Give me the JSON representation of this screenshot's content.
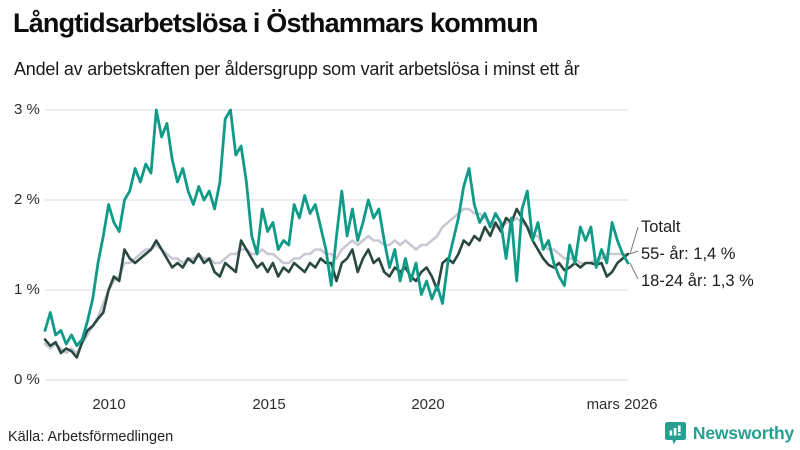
{
  "header": {
    "title": "Långtidsarbetslösa i Östhammars kommun",
    "subtitle": "Andel av arbetskraften per åldersgrupp som varit arbetslösa i minst ett år"
  },
  "footer": {
    "source": "Källa: Arbetsförmedlingen",
    "brand": "Newsworthy"
  },
  "colors": {
    "accent_teal": "#109b88",
    "dark_green": "#2a4840",
    "light_gray_line": "#c9c9d3",
    "gridline": "#e7e7ea",
    "leader_line": "#7a7a7a",
    "brand_teal": "#23a090"
  },
  "chart_data": {
    "type": "line",
    "title": "Långtidsarbetslösa i Östhammars kommun",
    "subtitle": "Andel av arbetskraften per åldersgrupp som varit arbetslösa i minst ett år",
    "x_axis": {
      "start": 2008.0,
      "end": 2026.25,
      "tick_labels": [
        "2010",
        "2015",
        "2020",
        "mars 2026"
      ],
      "tick_values": [
        2010,
        2015,
        2020,
        2026.17
      ]
    },
    "y_axis": {
      "lim": [
        0,
        3
      ],
      "tick_labels": [
        "3 %",
        "2 %",
        "1 %",
        "0 %"
      ],
      "tick_values": [
        3,
        2,
        1,
        0
      ],
      "grid": true
    },
    "legend_position": "end-of-line labels, right side",
    "end_labels": [
      {
        "text": "Totalt",
        "series": "Totalt"
      },
      {
        "text": "55- år: 1,4 %",
        "series": "55- år"
      },
      {
        "text": "18-24 år: 1,3 %",
        "series": "18-24 år"
      }
    ],
    "series": [
      {
        "name": "Totalt",
        "color": "#c9c9d3",
        "stroke_width": 2.6,
        "end_value": 1.4,
        "values": [
          0.4,
          0.35,
          0.4,
          0.35,
          0.3,
          0.35,
          0.3,
          0.4,
          0.5,
          0.6,
          0.7,
          0.85,
          1.0,
          1.1,
          1.15,
          1.3,
          1.3,
          1.35,
          1.4,
          1.45,
          1.45,
          1.5,
          1.45,
          1.4,
          1.35,
          1.35,
          1.3,
          1.35,
          1.35,
          1.4,
          1.35,
          1.35,
          1.3,
          1.3,
          1.35,
          1.4,
          1.4,
          1.45,
          1.45,
          1.4,
          1.4,
          1.45,
          1.4,
          1.4,
          1.35,
          1.3,
          1.3,
          1.35,
          1.35,
          1.4,
          1.4,
          1.45,
          1.45,
          1.4,
          1.4,
          1.35,
          1.45,
          1.5,
          1.55,
          1.5,
          1.55,
          1.6,
          1.55,
          1.55,
          1.5,
          1.5,
          1.55,
          1.5,
          1.55,
          1.5,
          1.45,
          1.5,
          1.5,
          1.55,
          1.6,
          1.7,
          1.75,
          1.8,
          1.85,
          1.9,
          1.9,
          1.85,
          1.85,
          1.8,
          1.75,
          1.7,
          1.7,
          1.75,
          1.75,
          1.8,
          1.75,
          1.7,
          1.6,
          1.6,
          1.5,
          1.45,
          1.45,
          1.4,
          1.35,
          1.35,
          1.35,
          1.3,
          1.3,
          1.3,
          1.35,
          1.35,
          1.4,
          1.4,
          1.4,
          1.4,
          1.4
        ]
      },
      {
        "name": "55- år",
        "color": "#2a4840",
        "stroke_width": 2.6,
        "end_value": 1.4,
        "values": [
          0.45,
          0.38,
          0.42,
          0.3,
          0.35,
          0.32,
          0.25,
          0.42,
          0.55,
          0.6,
          0.68,
          0.75,
          1.0,
          1.15,
          1.1,
          1.45,
          1.35,
          1.3,
          1.35,
          1.4,
          1.45,
          1.55,
          1.45,
          1.35,
          1.25,
          1.3,
          1.25,
          1.35,
          1.3,
          1.4,
          1.3,
          1.35,
          1.2,
          1.15,
          1.3,
          1.25,
          1.2,
          1.55,
          1.45,
          1.35,
          1.25,
          1.3,
          1.2,
          1.3,
          1.15,
          1.25,
          1.2,
          1.3,
          1.25,
          1.2,
          1.3,
          1.25,
          1.35,
          1.3,
          1.3,
          1.1,
          1.3,
          1.35,
          1.45,
          1.2,
          1.35,
          1.45,
          1.3,
          1.35,
          1.2,
          1.15,
          1.25,
          1.2,
          1.25,
          1.15,
          1.1,
          1.2,
          1.25,
          1.15,
          1.0,
          1.3,
          1.35,
          1.3,
          1.4,
          1.55,
          1.5,
          1.6,
          1.55,
          1.7,
          1.6,
          1.75,
          1.65,
          1.8,
          1.75,
          1.9,
          1.8,
          1.7,
          1.55,
          1.45,
          1.35,
          1.28,
          1.25,
          1.3,
          1.22,
          1.25,
          1.3,
          1.25,
          1.3,
          1.3,
          1.28,
          1.3,
          1.15,
          1.2,
          1.3,
          1.35,
          1.4
        ]
      },
      {
        "name": "18-24 år",
        "color": "#109b88",
        "stroke_width": 2.8,
        "end_value": 1.3,
        "values": [
          0.55,
          0.75,
          0.5,
          0.55,
          0.4,
          0.5,
          0.38,
          0.45,
          0.65,
          0.9,
          1.3,
          1.6,
          1.95,
          1.75,
          1.65,
          2.0,
          2.1,
          2.35,
          2.2,
          2.4,
          2.3,
          3.0,
          2.7,
          2.85,
          2.45,
          2.2,
          2.35,
          2.1,
          1.95,
          2.15,
          2.0,
          2.1,
          1.9,
          2.2,
          2.9,
          3.0,
          2.5,
          2.6,
          2.2,
          1.6,
          1.4,
          1.9,
          1.65,
          1.75,
          1.45,
          1.55,
          1.5,
          1.95,
          1.8,
          2.05,
          1.85,
          1.95,
          1.7,
          1.45,
          1.05,
          1.6,
          2.1,
          1.6,
          1.9,
          1.55,
          1.75,
          2.0,
          1.8,
          1.9,
          1.55,
          1.25,
          1.45,
          1.1,
          1.35,
          1.1,
          1.3,
          0.95,
          1.1,
          0.9,
          1.05,
          0.85,
          1.3,
          1.55,
          1.8,
          2.15,
          2.35,
          1.95,
          1.75,
          1.85,
          1.7,
          1.85,
          1.75,
          1.35,
          1.8,
          1.1,
          1.9,
          2.1,
          1.55,
          1.75,
          1.45,
          1.55,
          1.3,
          1.15,
          1.05,
          1.5,
          1.3,
          1.7,
          1.55,
          1.7,
          1.25,
          1.45,
          1.3,
          1.75,
          1.55,
          1.4,
          1.3
        ]
      }
    ]
  }
}
